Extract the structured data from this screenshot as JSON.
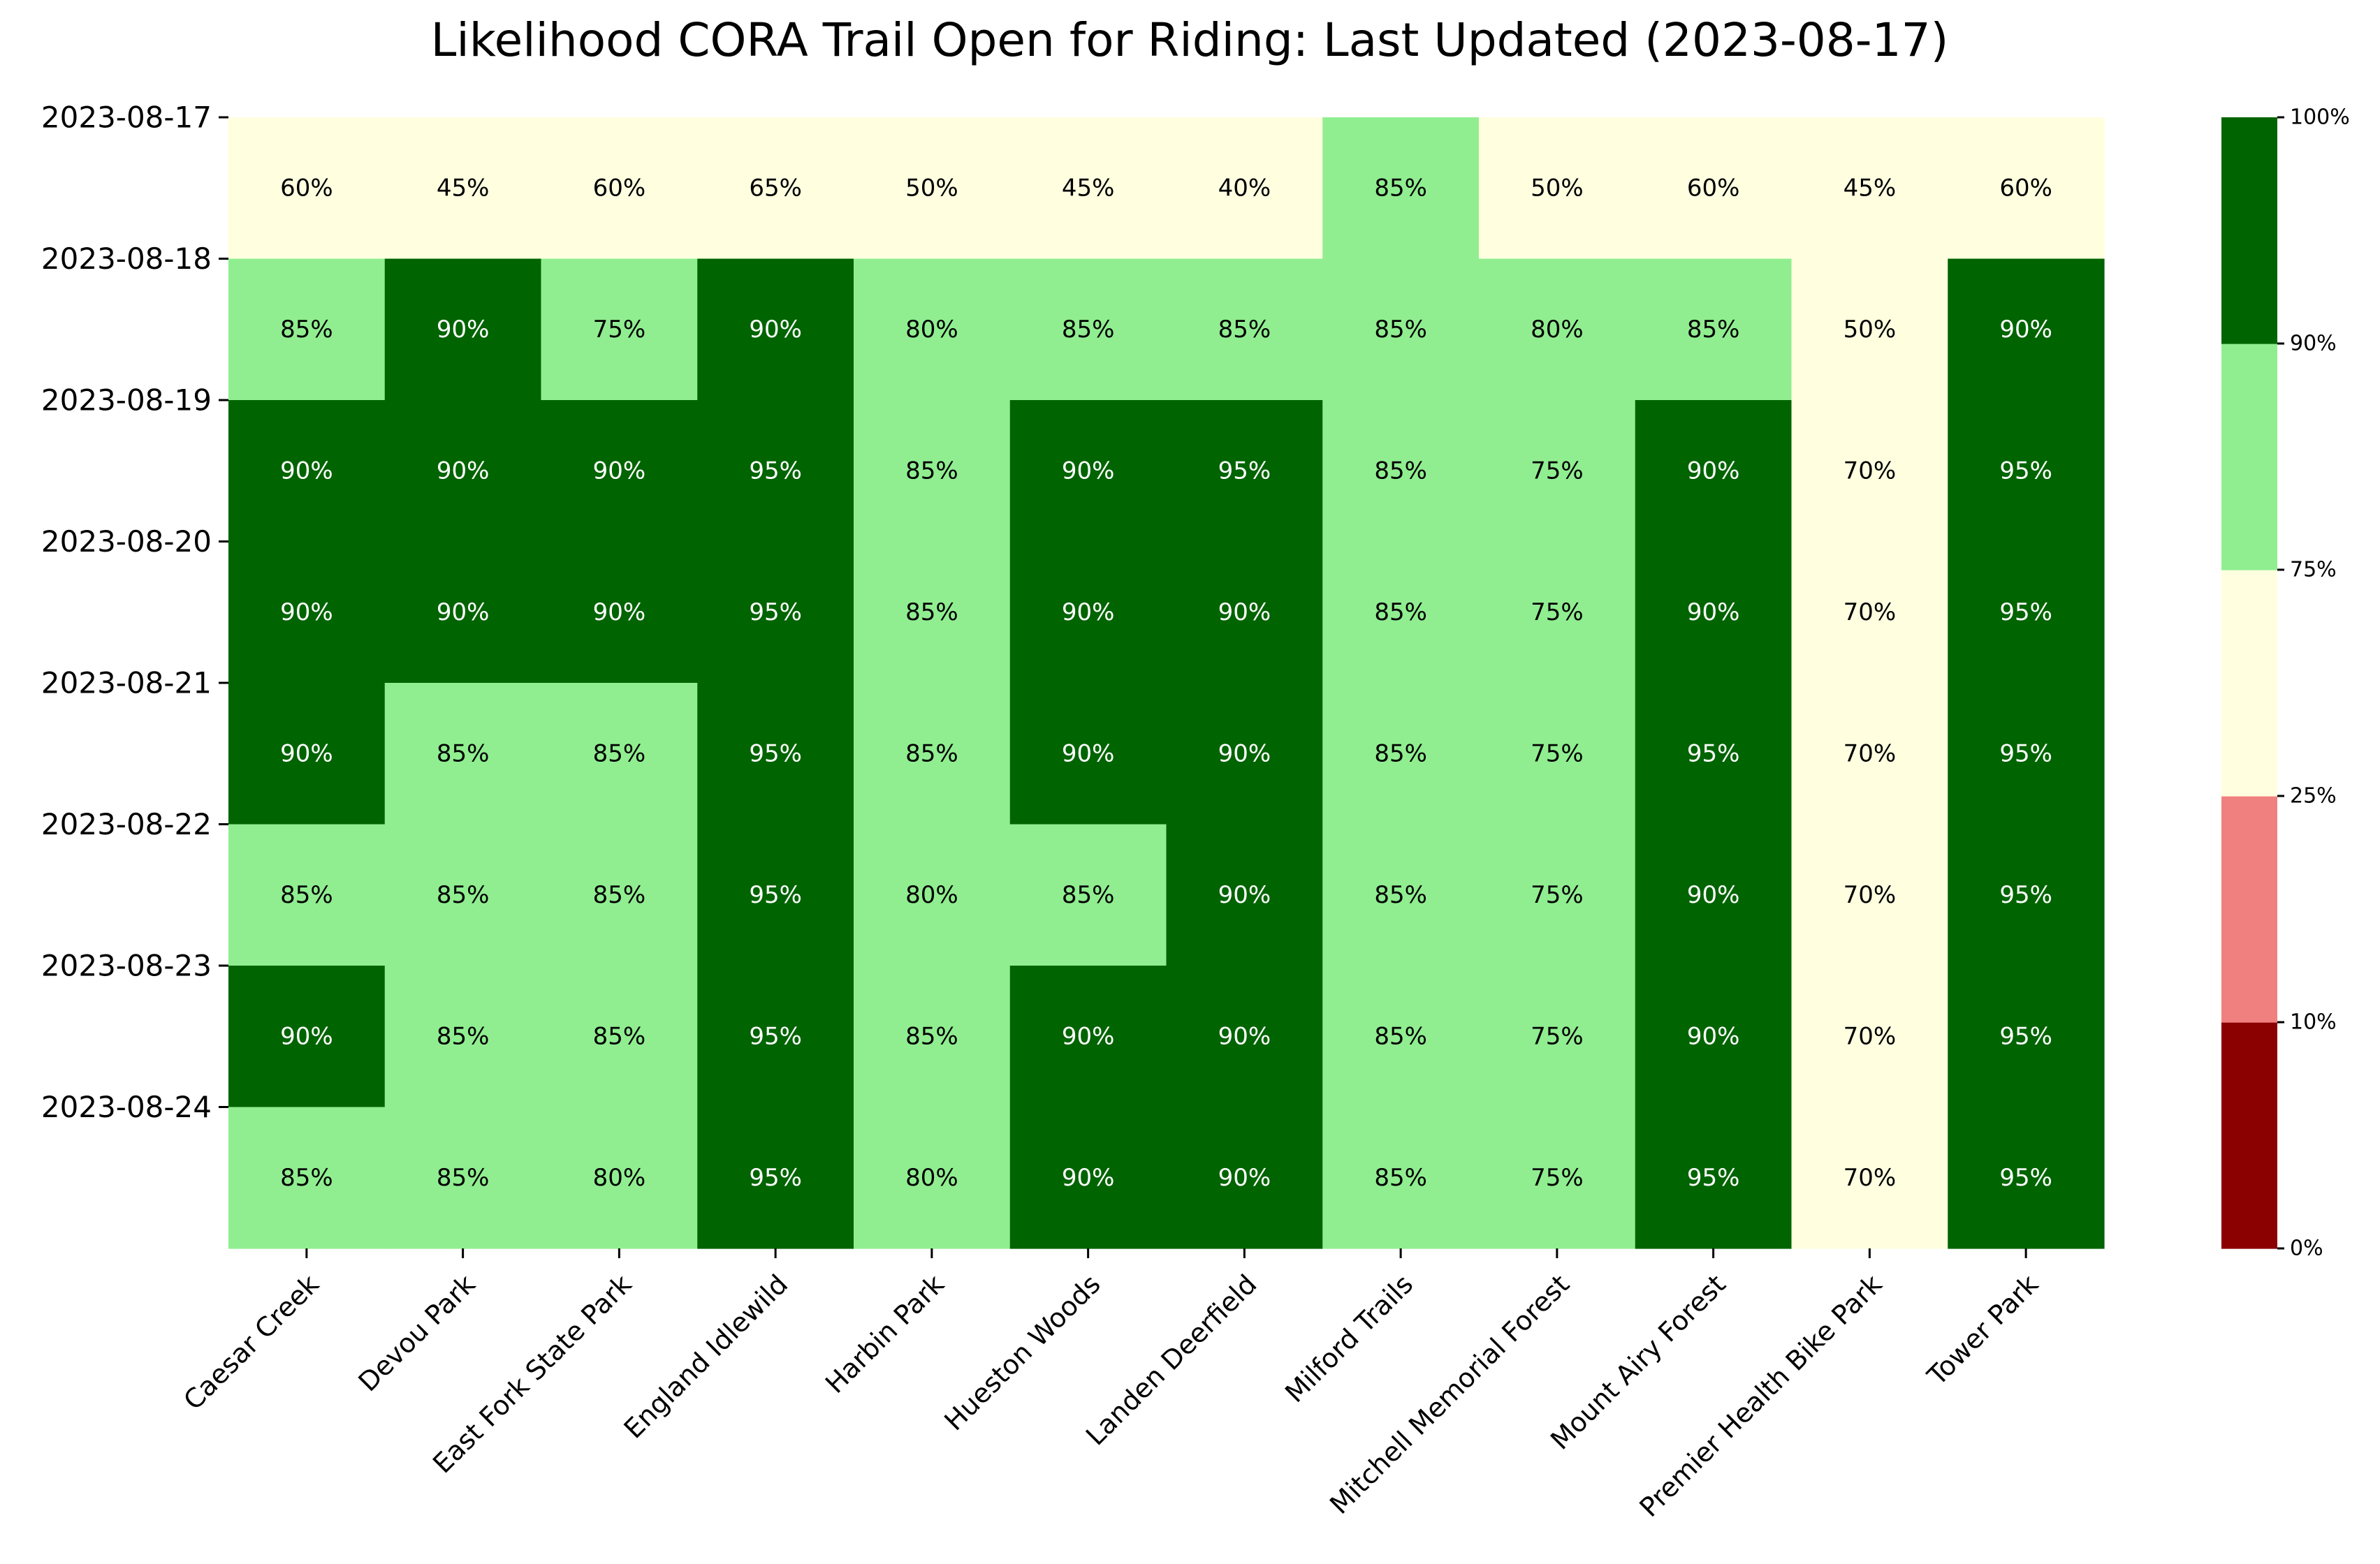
{
  "chart_data": {
    "type": "heatmap",
    "title": "Likelihood CORA Trail Open for Riding: Last Updated (2023-08-17)",
    "xlabel": "",
    "ylabel": "",
    "columns": [
      "Caesar Creek",
      "Devou Park",
      "East Fork State Park",
      "England Idlewild",
      "Harbin Park",
      "Hueston Woods",
      "Landen Deerfield",
      "Milford Trails",
      "Mitchell Memorial Forest",
      "Mount Airy Forest",
      "Premier Health Bike Park",
      "Tower Park"
    ],
    "rows": [
      "2023-08-17",
      "2023-08-18",
      "2023-08-19",
      "2023-08-20",
      "2023-08-21",
      "2023-08-22",
      "2023-08-23",
      "2023-08-24"
    ],
    "values": [
      [
        60,
        45,
        60,
        65,
        50,
        45,
        40,
        85,
        50,
        60,
        45,
        60
      ],
      [
        85,
        90,
        75,
        90,
        80,
        85,
        85,
        85,
        80,
        85,
        50,
        90
      ],
      [
        90,
        90,
        90,
        95,
        85,
        90,
        95,
        85,
        75,
        90,
        70,
        95
      ],
      [
        90,
        90,
        90,
        95,
        85,
        90,
        90,
        85,
        75,
        90,
        70,
        95
      ],
      [
        90,
        85,
        85,
        95,
        85,
        90,
        90,
        85,
        75,
        95,
        70,
        95
      ],
      [
        85,
        85,
        85,
        95,
        80,
        85,
        90,
        85,
        75,
        90,
        70,
        95
      ],
      [
        90,
        85,
        85,
        95,
        85,
        90,
        90,
        85,
        75,
        90,
        70,
        95
      ],
      [
        85,
        85,
        80,
        95,
        80,
        90,
        90,
        85,
        75,
        95,
        70,
        95
      ]
    ],
    "value_suffix": "%",
    "colorbar": {
      "boundaries": [
        0,
        10,
        25,
        75,
        90,
        100
      ],
      "tick_labels": [
        "0%",
        "10%",
        "25%",
        "75%",
        "90%",
        "100%"
      ],
      "colors": [
        "#8b0000",
        "#f08080",
        "#ffffe0",
        "#90ee90",
        "#006400"
      ]
    },
    "grid": false,
    "legend": "colorbar-right"
  }
}
